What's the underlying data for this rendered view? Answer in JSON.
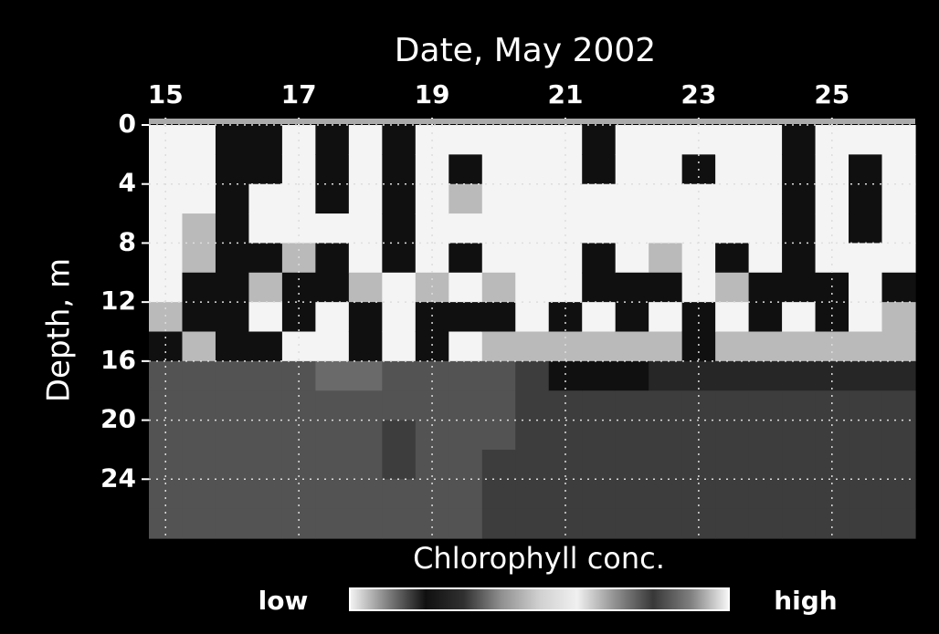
{
  "chart_data": {
    "type": "heatmap",
    "title": "Date, May 2002",
    "y_label": "Depth, m",
    "x": [
      15,
      15.5,
      16,
      16.5,
      17,
      17.5,
      18,
      18.5,
      19,
      19.5,
      20,
      20.5,
      21,
      21.5,
      22,
      22.5,
      23,
      23.5,
      24,
      24.5,
      25,
      25.5,
      26
    ],
    "y": [
      1,
      3,
      5,
      7,
      9,
      11,
      13,
      15,
      17,
      19,
      21,
      23,
      25,
      27
    ],
    "values": [
      [
        0,
        0,
        0,
        0,
        0,
        0,
        0.05,
        0.2,
        0.14,
        0.14,
        0.14,
        0.14,
        0.14,
        0.14
      ],
      [
        0,
        0,
        0,
        0.05,
        0.05,
        0.2,
        0.2,
        0.05,
        0.14,
        0.14,
        0.14,
        0.14,
        0.14,
        0.14
      ],
      [
        0.2,
        0.2,
        0.2,
        0.2,
        0.2,
        0.2,
        0.2,
        0.2,
        0.14,
        0.14,
        0.14,
        0.14,
        0.14,
        0.14
      ],
      [
        0.2,
        0.2,
        0,
        0,
        0.2,
        0.05,
        0,
        0.2,
        0.14,
        0.14,
        0.14,
        0.14,
        0.14,
        0.14
      ],
      [
        0,
        0,
        0,
        0,
        0.05,
        0.2,
        0.2,
        0,
        0.14,
        0.14,
        0.14,
        0.14,
        0.14,
        0.14
      ],
      [
        0.2,
        0.2,
        0.2,
        0,
        0.2,
        0.2,
        0,
        0,
        0.12,
        0.14,
        0.14,
        0.14,
        0.14,
        0.14
      ],
      [
        0,
        0,
        0,
        0,
        0,
        0.05,
        0.2,
        0.2,
        0.12,
        0.14,
        0.14,
        0.14,
        0.14,
        0.14
      ],
      [
        0.2,
        0.2,
        0.2,
        0.2,
        0.2,
        0,
        0,
        0,
        0.14,
        0.14,
        0.16,
        0.16,
        0.14,
        0.14
      ],
      [
        0,
        0,
        0,
        0,
        0,
        0.05,
        0.2,
        0.2,
        0.14,
        0.14,
        0.14,
        0.14,
        0.14,
        0.14
      ],
      [
        0,
        0.2,
        0.05,
        0,
        0.2,
        0,
        0.2,
        0,
        0.14,
        0.14,
        0.14,
        0.14,
        0.14,
        0.14
      ],
      [
        0,
        0,
        0,
        0,
        0,
        0.05,
        0.2,
        0.05,
        0.14,
        0.14,
        0.14,
        0.16,
        0.16,
        0.16
      ],
      [
        0,
        0,
        0,
        0,
        0,
        0,
        0,
        0.05,
        0.16,
        0.16,
        0.16,
        0.16,
        0.16,
        0.16
      ],
      [
        0,
        0,
        0,
        0,
        0,
        0,
        0.2,
        0.05,
        0.2,
        0.16,
        0.16,
        0.16,
        0.16,
        0.16
      ],
      [
        0.2,
        0.2,
        0,
        0,
        0.2,
        0.2,
        0,
        0.05,
        0.2,
        0.16,
        0.16,
        0.16,
        0.16,
        0.16
      ],
      [
        0,
        0,
        0,
        0,
        0,
        0.2,
        0.2,
        0.05,
        0.2,
        0.16,
        0.16,
        0.16,
        0.16,
        0.16
      ],
      [
        0,
        0,
        0,
        0,
        0.05,
        0.2,
        0,
        0.05,
        0.18,
        0.16,
        0.16,
        0.16,
        0.16,
        0.16
      ],
      [
        0,
        0.2,
        0,
        0,
        0,
        0,
        0.2,
        0.2,
        0.18,
        0.16,
        0.16,
        0.16,
        0.16,
        0.16
      ],
      [
        0,
        0,
        0,
        0,
        0.2,
        0.05,
        0,
        0.05,
        0.18,
        0.16,
        0.16,
        0.16,
        0.16,
        0.16
      ],
      [
        0,
        0,
        0,
        0,
        0,
        0.2,
        0.2,
        0.05,
        0.18,
        0.16,
        0.16,
        0.16,
        0.16,
        0.16
      ],
      [
        0.2,
        0.2,
        0.2,
        0.2,
        0.2,
        0.2,
        0,
        0.05,
        0.18,
        0.16,
        0.16,
        0.16,
        0.16,
        0.16
      ],
      [
        0,
        0,
        0,
        0,
        0,
        0.2,
        0.2,
        0.05,
        0.18,
        0.16,
        0.16,
        0.16,
        0.16,
        0.16
      ],
      [
        0,
        0.2,
        0.2,
        0.2,
        0,
        0,
        0,
        0.05,
        0.18,
        0.16,
        0.16,
        0.16,
        0.16,
        0.16
      ],
      [
        0,
        0,
        0,
        0,
        0,
        0.2,
        0.05,
        0.05,
        0.18,
        0.16,
        0.16,
        0.16,
        0.16,
        0.16
      ]
    ],
    "xlim": [
      14.75,
      26.25
    ],
    "xticks": [
      15,
      17,
      19,
      21,
      23,
      25
    ],
    "ylim": [
      0,
      28
    ],
    "yticks": [
      0,
      4,
      8,
      12,
      16,
      20,
      24
    ],
    "y_reversed": true,
    "grid": true,
    "colormap": [
      "#f4f4f4",
      "#808080",
      "#101010",
      "#303030",
      "#909090",
      "#d0d0d0",
      "#f0f0f0",
      "#909090",
      "#383838",
      "#808080",
      "#f8f8f8"
    ],
    "colorbar_label": "Chlorophyll conc.",
    "colorbar_low": "low",
    "colorbar_high": "high"
  }
}
